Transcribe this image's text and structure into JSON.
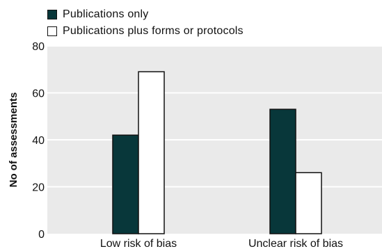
{
  "chart_data": {
    "type": "bar",
    "categories": [
      "Low risk of bias",
      "Unclear risk of bias"
    ],
    "series": [
      {
        "name": "Publications only",
        "values": [
          42,
          53
        ],
        "color": "#08373a"
      },
      {
        "name": "Publications plus forms or protocols",
        "values": [
          69,
          26
        ],
        "color": "#ffffff"
      }
    ],
    "ylabel": "No of assessments",
    "xlabel": "",
    "ylim": [
      0,
      80
    ],
    "yticks": [
      0,
      20,
      40,
      60,
      80
    ],
    "grid": true,
    "plot_background": "#eaeaea",
    "legend_position": "top-left"
  }
}
